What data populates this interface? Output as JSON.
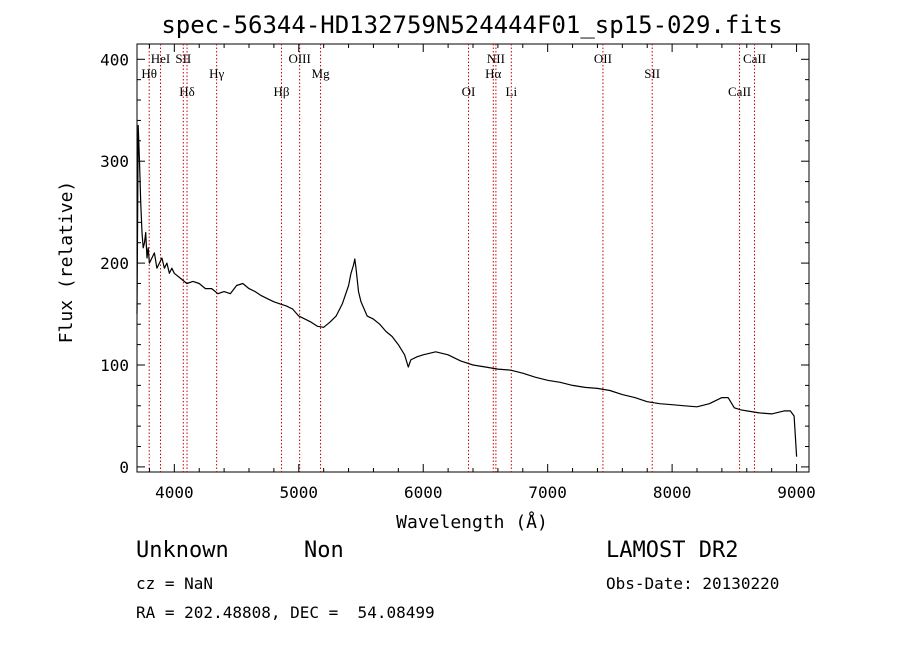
{
  "chart_data": {
    "type": "line",
    "title": "spec-56344-HD132759N524444F01_sp15-029.fits",
    "xlabel": "Wavelength (Å)",
    "ylabel": "Flux (relative)",
    "xlim": [
      3700,
      9100
    ],
    "ylim": [
      -5,
      415
    ],
    "xticks": [
      4000,
      5000,
      6000,
      7000,
      8000,
      9000
    ],
    "yticks": [
      0,
      100,
      200,
      300,
      400
    ],
    "line_color": "#000000",
    "marker_color": "#cc0000",
    "series": [
      {
        "x": [
          3700,
          3710,
          3720,
          3730,
          3740,
          3750,
          3760,
          3770,
          3780,
          3790,
          3800,
          3820,
          3840,
          3860,
          3880,
          3900,
          3920,
          3940,
          3960,
          3980,
          4000,
          4050,
          4100,
          4150,
          4200,
          4250,
          4300,
          4350,
          4400,
          4450,
          4500,
          4550,
          4600,
          4650,
          4700,
          4750,
          4800,
          4850,
          4900,
          4950,
          5000,
          5050,
          5100,
          5150,
          5200,
          5250,
          5300,
          5350,
          5400,
          5420,
          5440,
          5450,
          5460,
          5480,
          5500,
          5550,
          5600,
          5650,
          5700,
          5750,
          5800,
          5850,
          5880,
          5900,
          5950,
          6000,
          6100,
          6200,
          6300,
          6400,
          6500,
          6600,
          6700,
          6800,
          6900,
          7000,
          7100,
          7200,
          7300,
          7400,
          7500,
          7600,
          7700,
          7800,
          7900,
          8000,
          8100,
          8200,
          8300,
          8400,
          8450,
          8500,
          8550,
          8600,
          8700,
          8800,
          8900,
          8950,
          8980,
          9000
        ],
        "y": [
          150,
          335,
          300,
          260,
          230,
          215,
          220,
          230,
          205,
          215,
          200,
          205,
          210,
          195,
          200,
          205,
          195,
          200,
          190,
          195,
          190,
          185,
          180,
          182,
          180,
          175,
          175,
          170,
          172,
          170,
          178,
          180,
          175,
          172,
          168,
          165,
          162,
          160,
          158,
          155,
          148,
          145,
          142,
          138,
          137,
          142,
          148,
          160,
          178,
          190,
          198,
          204,
          195,
          172,
          162,
          148,
          145,
          140,
          133,
          128,
          120,
          110,
          98,
          105,
          108,
          110,
          113,
          110,
          104,
          100,
          98,
          96,
          95,
          92,
          88,
          85,
          83,
          80,
          78,
          77,
          75,
          71,
          68,
          64,
          62,
          61,
          60,
          59,
          62,
          68,
          68,
          58,
          56,
          55,
          53,
          52,
          55,
          55,
          50,
          10
        ]
      }
    ],
    "lines": [
      {
        "label": "HeI",
        "wavelength": 3889
      },
      {
        "label": "Hθ",
        "wavelength": 3798
      },
      {
        "label": "Hδ",
        "wavelength": 4102
      },
      {
        "label": "SII",
        "wavelength": 4072
      },
      {
        "label": "Hγ",
        "wavelength": 4340
      },
      {
        "label": "Hβ",
        "wavelength": 4861
      },
      {
        "label": "OIII",
        "wavelength": 5007
      },
      {
        "label": "Mg",
        "wavelength": 5175
      },
      {
        "label": "OI",
        "wavelength": 6364
      },
      {
        "label": "NII",
        "wavelength": 6584
      },
      {
        "label": "Hα",
        "wavelength": 6563
      },
      {
        "label": "Li",
        "wavelength": 6708
      },
      {
        "label": "OII",
        "wavelength": 7444
      },
      {
        "label": "SII",
        "wavelength": 7840
      },
      {
        "label": "CaII",
        "wavelength": 8542
      },
      {
        "label": "CaII",
        "wavelength": 8662
      }
    ]
  },
  "info": {
    "class": "Unknown",
    "subclass": "Non",
    "survey": "LAMOST DR2",
    "cz": "cz = NaN",
    "obs_date": "Obs-Date: 20130220",
    "coords": "RA = 202.48808, DEC =  54.08499"
  }
}
